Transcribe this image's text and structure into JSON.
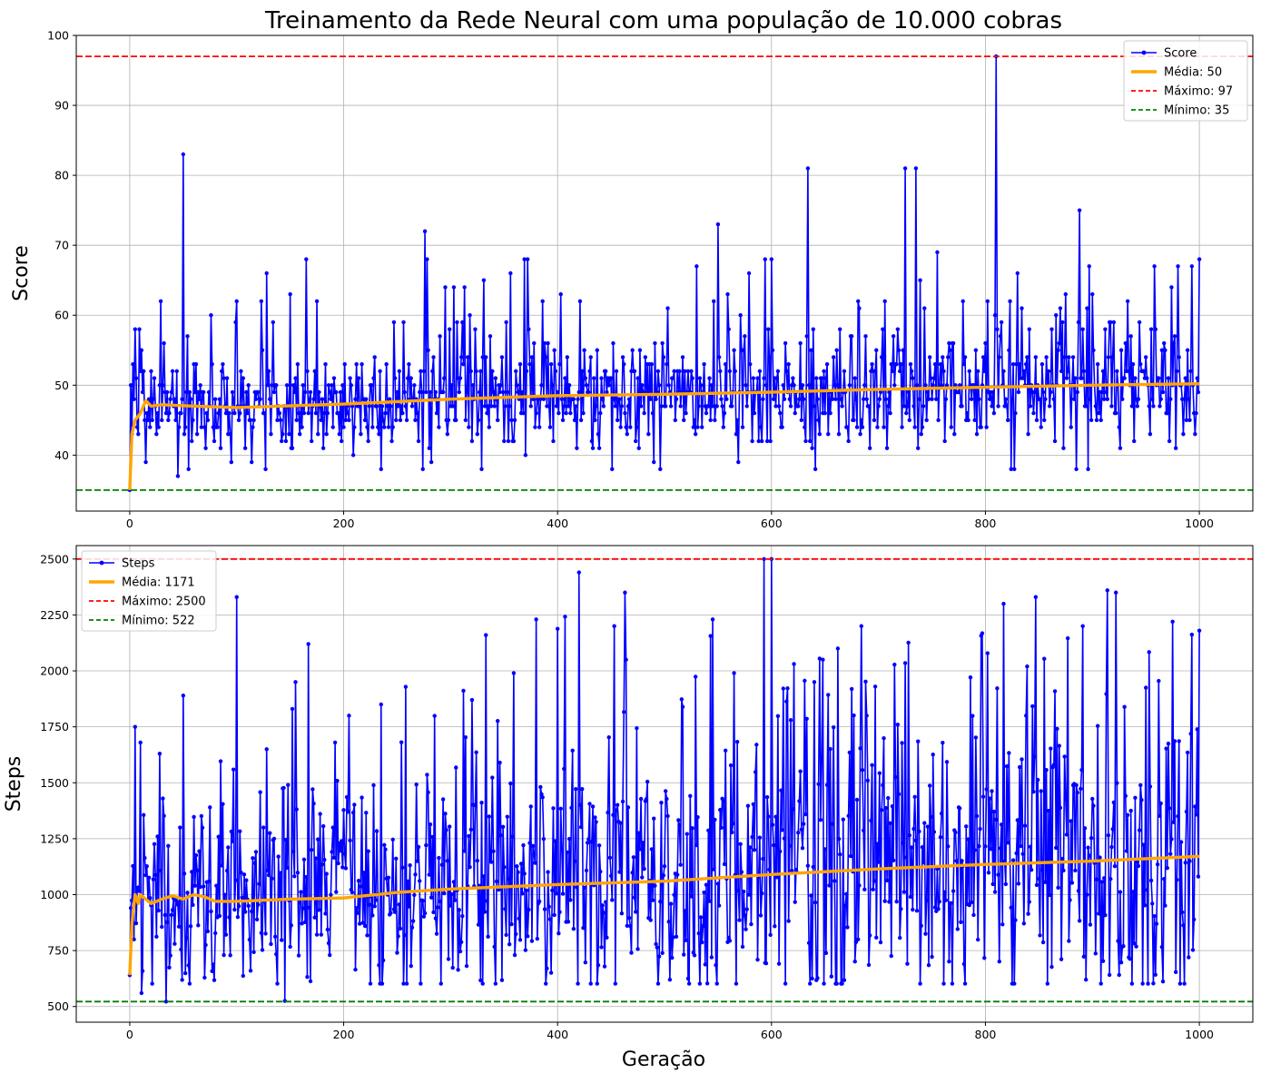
{
  "title": "Treinamento da Rede Neural com uma população de 10.000 cobras",
  "xlabel": "Geração",
  "colors": {
    "series": "#0000ff",
    "mean": "#ffa500",
    "max": "#ff0000",
    "min": "#008000",
    "grid": "#b0b0b0"
  },
  "chart_data": [
    {
      "type": "line",
      "ylabel": "Score",
      "xlim": [
        -50,
        1050
      ],
      "ylim": [
        32,
        100
      ],
      "xticks": [
        0,
        200,
        400,
        600,
        800,
        1000
      ],
      "yticks": [
        40,
        50,
        60,
        70,
        80,
        90,
        100
      ],
      "grid": true,
      "legend_position": "top-right",
      "legend": {
        "series": "Score",
        "mean": "Média: 50",
        "max": "Máximo: 97",
        "min": "Mínimo: 35"
      },
      "hlines": {
        "max": 97,
        "min": 35
      },
      "series_name": "Score",
      "x_range": [
        0,
        1000
      ],
      "approx_mean": 50,
      "peaks": [
        [
          0,
          35
        ],
        [
          3,
          53
        ],
        [
          5,
          58
        ],
        [
          9,
          58
        ],
        [
          11,
          55
        ],
        [
          15,
          39
        ],
        [
          20,
          52
        ],
        [
          29,
          62
        ],
        [
          32,
          56
        ],
        [
          40,
          52
        ],
        [
          45,
          37
        ],
        [
          50,
          83
        ],
        [
          55,
          38
        ],
        [
          62,
          53
        ],
        [
          100,
          62
        ],
        [
          128,
          66
        ],
        [
          165,
          68
        ],
        [
          175,
          62
        ],
        [
          276,
          72
        ],
        [
          278,
          68
        ],
        [
          295,
          64
        ],
        [
          331,
          65
        ],
        [
          369,
          68
        ],
        [
          372,
          68
        ],
        [
          421,
          62
        ],
        [
          490,
          39
        ],
        [
          550,
          73
        ],
        [
          594,
          68
        ],
        [
          600,
          68
        ],
        [
          634,
          81
        ],
        [
          725,
          81
        ],
        [
          735,
          81
        ],
        [
          810,
          97
        ],
        [
          830,
          66
        ],
        [
          865,
          42
        ],
        [
          888,
          75
        ],
        [
          897,
          67
        ],
        [
          925,
          44
        ],
        [
          980,
          67
        ],
        [
          1000,
          68
        ]
      ],
      "mean_curve": [
        [
          0,
          35
        ],
        [
          2,
          43
        ],
        [
          5,
          45
        ],
        [
          10,
          46
        ],
        [
          15,
          47.8
        ],
        [
          20,
          47
        ],
        [
          30,
          47.2
        ],
        [
          60,
          47
        ],
        [
          100,
          46.8
        ],
        [
          200,
          47.3
        ],
        [
          300,
          48
        ],
        [
          400,
          48.5
        ],
        [
          500,
          48.7
        ],
        [
          600,
          49
        ],
        [
          700,
          49.4
        ],
        [
          800,
          49.7
        ],
        [
          900,
          50
        ],
        [
          1000,
          50.2
        ]
      ]
    },
    {
      "type": "line",
      "ylabel": "Steps",
      "xlim": [
        -50,
        1050
      ],
      "ylim": [
        430,
        2560
      ],
      "xticks": [
        0,
        200,
        400,
        600,
        800,
        1000
      ],
      "yticks": [
        500,
        750,
        1000,
        1250,
        1500,
        1750,
        2000,
        2250,
        2500
      ],
      "grid": true,
      "legend_position": "top-left",
      "legend": {
        "series": "Steps",
        "mean": "Média: 1171",
        "max": "Máximo: 2500",
        "min": "Mínimo: 522"
      },
      "hlines": {
        "max": 2500,
        "min": 522
      },
      "series_name": "Steps",
      "x_range": [
        0,
        1000
      ],
      "approx_mean": 1171,
      "peaks": [
        [
          0,
          640
        ],
        [
          5,
          1750
        ],
        [
          10,
          1680
        ],
        [
          11,
          560
        ],
        [
          28,
          1630
        ],
        [
          34,
          522
        ],
        [
          50,
          1890
        ],
        [
          100,
          2330
        ],
        [
          128,
          1650
        ],
        [
          145,
          525
        ],
        [
          155,
          1950
        ],
        [
          167,
          2120
        ],
        [
          205,
          1800
        ],
        [
          235,
          1850
        ],
        [
          320,
          1870
        ],
        [
          333,
          2160
        ],
        [
          359,
          1990
        ],
        [
          380,
          2230
        ],
        [
          390,
          670
        ],
        [
          420,
          2440
        ],
        [
          464,
          2050
        ],
        [
          505,
          620
        ],
        [
          545,
          2230
        ],
        [
          593,
          2500
        ],
        [
          600,
          2500
        ],
        [
          640,
          1950
        ],
        [
          662,
          2100
        ],
        [
          684,
          2200
        ],
        [
          780,
          690
        ],
        [
          817,
          2300
        ],
        [
          839,
          2020
        ],
        [
          847,
          2330
        ],
        [
          891,
          2200
        ],
        [
          914,
          2360
        ],
        [
          934,
          720
        ],
        [
          975,
          2220
        ],
        [
          990,
          720
        ],
        [
          1000,
          2180
        ]
      ],
      "mean_curve": [
        [
          0,
          640
        ],
        [
          2,
          870
        ],
        [
          5,
          1000
        ],
        [
          8,
          960
        ],
        [
          10,
          1000
        ],
        [
          20,
          960
        ],
        [
          30,
          980
        ],
        [
          40,
          995
        ],
        [
          50,
          980
        ],
        [
          60,
          1000
        ],
        [
          70,
          990
        ],
        [
          80,
          970
        ],
        [
          100,
          970
        ],
        [
          150,
          980
        ],
        [
          200,
          985
        ],
        [
          250,
          1010
        ],
        [
          300,
          1025
        ],
        [
          400,
          1045
        ],
        [
          500,
          1060
        ],
        [
          600,
          1090
        ],
        [
          700,
          1115
        ],
        [
          800,
          1135
        ],
        [
          900,
          1150
        ],
        [
          1000,
          1171
        ]
      ]
    }
  ]
}
